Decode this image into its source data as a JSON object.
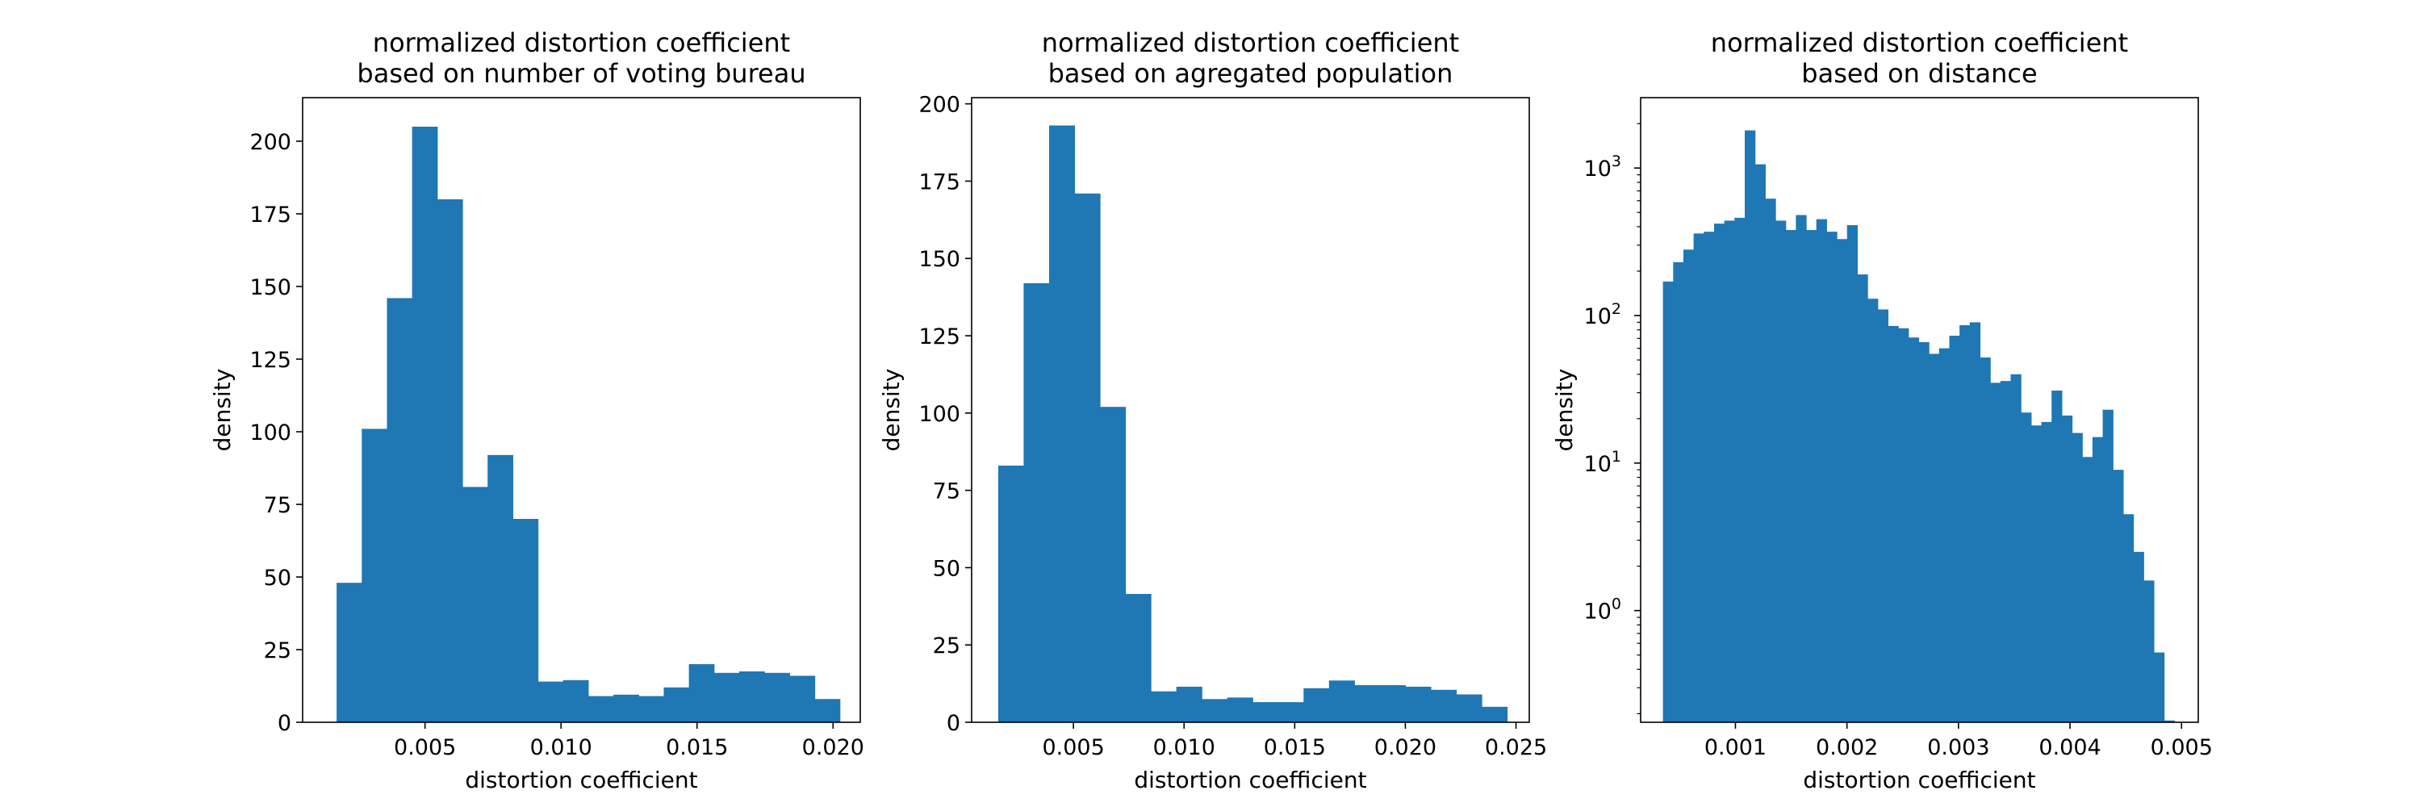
{
  "figure": {
    "bar_color": "#1f77b4"
  },
  "chart_data": [
    {
      "type": "bar",
      "histogram": true,
      "title": "normalized distortion coefficient\nbased on number of voting bureau",
      "xlabel": "distortion coefficient",
      "ylabel": "density",
      "yscale": "linear",
      "xlim": [
        0.0005,
        0.021
      ],
      "ylim": [
        0,
        215
      ],
      "xticks": [
        {
          "value": 0.005,
          "label": "0.005"
        },
        {
          "value": 0.01,
          "label": "0.010"
        },
        {
          "value": 0.015,
          "label": "0.015"
        },
        {
          "value": 0.02,
          "label": "0.020"
        }
      ],
      "yticks": [
        {
          "value": 0,
          "label": "0"
        },
        {
          "value": 25,
          "label": "25"
        },
        {
          "value": 50,
          "label": "50"
        },
        {
          "value": 75,
          "label": "75"
        },
        {
          "value": 100,
          "label": "100"
        },
        {
          "value": 125,
          "label": "125"
        },
        {
          "value": 150,
          "label": "150"
        },
        {
          "value": 175,
          "label": "175"
        },
        {
          "value": 200,
          "label": "200"
        }
      ],
      "bin_start": 0.00175,
      "bin_width": 0.000925,
      "values": [
        48,
        101,
        146,
        205,
        180,
        81,
        92,
        70,
        14,
        14.5,
        9,
        9.5,
        9,
        12,
        20,
        17,
        17.5,
        17,
        16,
        8
      ]
    },
    {
      "type": "bar",
      "histogram": true,
      "title": "normalized distortion coefficient\nbased on agregated population",
      "xlabel": "distortion coefficient",
      "ylabel": "density",
      "yscale": "linear",
      "xlim": [
        0.0004,
        0.0256
      ],
      "ylim": [
        0,
        202
      ],
      "xticks": [
        {
          "value": 0.005,
          "label": "0.005"
        },
        {
          "value": 0.01,
          "label": "0.010"
        },
        {
          "value": 0.015,
          "label": "0.015"
        },
        {
          "value": 0.02,
          "label": "0.020"
        },
        {
          "value": 0.025,
          "label": "0.025"
        }
      ],
      "yticks": [
        {
          "value": 0,
          "label": "0"
        },
        {
          "value": 25,
          "label": "25"
        },
        {
          "value": 50,
          "label": "50"
        },
        {
          "value": 75,
          "label": "75"
        },
        {
          "value": 100,
          "label": "100"
        },
        {
          "value": 125,
          "label": "125"
        },
        {
          "value": 150,
          "label": "150"
        },
        {
          "value": 175,
          "label": "175"
        },
        {
          "value": 200,
          "label": "200"
        }
      ],
      "bin_start": 0.0016,
      "bin_width": 0.00115,
      "values": [
        83,
        142,
        193,
        171,
        102,
        41.5,
        10,
        11.5,
        7.5,
        8,
        6.5,
        6.5,
        11,
        13.5,
        12,
        12,
        11.5,
        10.5,
        9,
        5
      ]
    },
    {
      "type": "bar",
      "histogram": true,
      "title": "normalized distortion coefficient\nbased on distance",
      "xlabel": "distortion coefficient",
      "ylabel": "density",
      "yscale": "log",
      "xlim": [
        0.00015,
        0.00515
      ],
      "ylim": [
        0.175,
        3000
      ],
      "xticks": [
        {
          "value": 0.001,
          "label": "0.001"
        },
        {
          "value": 0.002,
          "label": "0.002"
        },
        {
          "value": 0.003,
          "label": "0.003"
        },
        {
          "value": 0.004,
          "label": "0.004"
        },
        {
          "value": 0.005,
          "label": "0.005"
        }
      ],
      "yticks": [
        {
          "value": 1,
          "label": "10",
          "exp": "0"
        },
        {
          "value": 10,
          "label": "10",
          "exp": "1"
        },
        {
          "value": 100,
          "label": "10",
          "exp": "2"
        },
        {
          "value": 1000,
          "label": "10",
          "exp": "3"
        }
      ],
      "bin_start": 0.00035,
      "bin_width": 9.17e-05,
      "values": [
        170,
        230,
        280,
        360,
        370,
        420,
        440,
        460,
        1800,
        1060,
        620,
        440,
        380,
        480,
        380,
        450,
        370,
        330,
        410,
        190,
        130,
        110,
        85,
        82,
        71,
        66,
        55,
        60,
        73,
        86,
        90,
        52,
        35,
        36,
        40,
        22,
        18,
        19,
        31,
        21,
        16,
        11,
        15,
        23,
        9,
        4.5,
        2.5,
        1.6,
        0.52,
        0.18
      ]
    }
  ]
}
